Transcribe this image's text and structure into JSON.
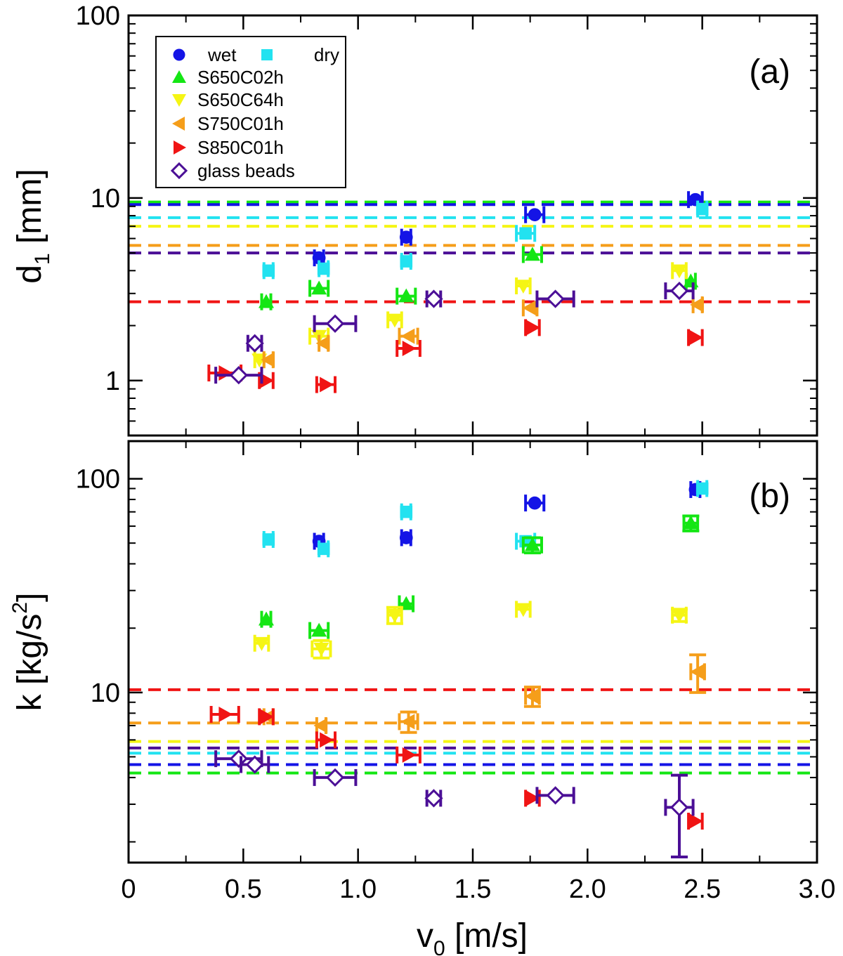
{
  "chart_data": [
    {
      "panel_label": "(a)",
      "type": "scatter",
      "x_scale": "linear",
      "y_scale": "log",
      "xlim": [
        0,
        3.0
      ],
      "ylim": [
        0.5,
        100
      ],
      "x_ticks": [
        0,
        0.5,
        1.0,
        1.5,
        2.0,
        2.5,
        3.0
      ],
      "x_tick_labels": [
        "",
        "",
        "",
        "",
        "",
        "",
        ""
      ],
      "y_ticks": [
        1,
        10,
        100
      ],
      "y_tick_labels": [
        "1",
        "10",
        "100"
      ],
      "ylabel": "d",
      "ylabel_sub": "1",
      "ylabel_unit": " [mm]",
      "legend_position": "top-left",
      "legend": [
        {
          "name": "wet",
          "marker": "circle",
          "color": "#1414e6"
        },
        {
          "name": "dry",
          "marker": "square",
          "color": "#22e2f0"
        },
        {
          "name": "S650C02h",
          "marker": "triangle-up",
          "color": "#14e614"
        },
        {
          "name": "S650C64h",
          "marker": "triangle-down",
          "color": "#f5f514"
        },
        {
          "name": "S750C01h",
          "marker": "triangle-left",
          "color": "#f59e1a"
        },
        {
          "name": "S850C01h",
          "marker": "triangle-right",
          "color": "#f01414"
        },
        {
          "name": "glass beads",
          "marker": "diamond-open",
          "color": "#4b0f96"
        }
      ],
      "hlines": [
        {
          "series": "S650C02h",
          "y": 9.5
        },
        {
          "series": "wet",
          "y": 9.2
        },
        {
          "series": "dry",
          "y": 7.8
        },
        {
          "series": "S650C64h",
          "y": 7.0
        },
        {
          "series": "S750C01h",
          "y": 5.5
        },
        {
          "series": "glass beads",
          "y": 5.0
        },
        {
          "series": "S850C01h",
          "y": 2.7
        }
      ],
      "series": [
        {
          "name": "wet",
          "points": [
            [
              0.83,
              4.7,
              0.02
            ],
            [
              1.21,
              6.1,
              0.02
            ],
            [
              1.77,
              8.1,
              0.04
            ],
            [
              2.47,
              9.8,
              0.03
            ]
          ]
        },
        {
          "name": "dry",
          "points": [
            [
              0.61,
              4.0,
              0.02
            ],
            [
              0.85,
              4.1,
              0.02
            ],
            [
              1.21,
              4.5,
              0.02
            ],
            [
              1.73,
              6.4,
              0.04
            ],
            [
              2.5,
              8.7,
              0.02
            ]
          ]
        },
        {
          "name": "S650C02h",
          "points": [
            [
              0.6,
              2.7,
              0.02
            ],
            [
              0.83,
              3.2,
              0.04
            ],
            [
              1.21,
              2.9,
              0.04
            ],
            [
              1.76,
              4.9,
              0.04
            ],
            [
              2.45,
              3.5,
              0.02
            ]
          ]
        },
        {
          "name": "S650C64h",
          "points": [
            [
              0.57,
              1.3,
              0.02
            ],
            [
              0.83,
              1.75,
              0.04
            ],
            [
              1.16,
              2.15,
              0.03
            ],
            [
              1.72,
              3.3,
              0.03
            ],
            [
              2.4,
              4.0,
              0.03
            ]
          ]
        },
        {
          "name": "S750C01h",
          "points": [
            [
              0.61,
              1.3,
              0.02
            ],
            [
              0.85,
              1.6,
              0.02
            ],
            [
              1.22,
              1.75,
              0.04
            ],
            [
              1.75,
              2.5,
              0.03
            ],
            [
              2.48,
              2.6,
              0.02
            ]
          ]
        },
        {
          "name": "S850C01h",
          "points": [
            [
              0.42,
              1.1,
              0.07
            ],
            [
              0.6,
              1.0,
              0.03
            ],
            [
              0.86,
              0.95,
              0.04
            ],
            [
              1.22,
              1.5,
              0.05
            ],
            [
              1.76,
              1.95,
              0.03
            ],
            [
              2.47,
              1.72,
              0.03
            ]
          ]
        },
        {
          "name": "glass beads",
          "points": [
            [
              0.48,
              1.07,
              0.1
            ],
            [
              0.55,
              1.6,
              0.03
            ],
            [
              0.9,
              2.05,
              0.09
            ],
            [
              1.33,
              2.8,
              0.03
            ],
            [
              1.86,
              2.8,
              0.08
            ],
            [
              2.4,
              3.1,
              0.06
            ]
          ]
        }
      ]
    },
    {
      "panel_label": "(b)",
      "type": "scatter",
      "x_scale": "linear",
      "y_scale": "log",
      "xlim": [
        0,
        3.0
      ],
      "ylim": [
        1.6,
        150
      ],
      "x_ticks": [
        0,
        0.5,
        1.0,
        1.5,
        2.0,
        2.5,
        3.0
      ],
      "x_tick_labels": [
        "0",
        "0.5",
        "1.0",
        "1.5",
        "2.0",
        "2.5",
        "3.0"
      ],
      "y_ticks": [
        10,
        100
      ],
      "y_tick_labels": [
        "10",
        "100"
      ],
      "xlabel": "v",
      "xlabel_sub": "0",
      "xlabel_unit": " [m/s]",
      "ylabel": "k [kg/s",
      "ylabel_sup": "2",
      "ylabel_end": "]",
      "hlines": [
        {
          "series": "S850C01h",
          "y": 10.3
        },
        {
          "series": "S750C01h",
          "y": 7.2
        },
        {
          "series": "S650C64h",
          "y": 5.9
        },
        {
          "series": "glass beads",
          "y": 5.5
        },
        {
          "series": "dry",
          "y": 5.2
        },
        {
          "series": "wet",
          "y": 4.6
        },
        {
          "series": "S650C02h",
          "y": 4.2
        }
      ],
      "series": [
        {
          "name": "wet",
          "points": [
            [
              0.83,
              51,
              0.02,
              0
            ],
            [
              1.21,
              53,
              0.02,
              0
            ],
            [
              1.77,
              77,
              0.04,
              0
            ],
            [
              2.47,
              89,
              0.02,
              0
            ]
          ]
        },
        {
          "name": "dry",
          "points": [
            [
              0.61,
              52,
              0.02,
              0
            ],
            [
              0.85,
              47,
              0.02,
              0
            ],
            [
              1.21,
              70,
              0.02,
              0
            ],
            [
              1.73,
              51,
              0.04,
              0
            ],
            [
              2.5,
              90,
              0.02,
              0
            ]
          ]
        },
        {
          "name": "S650C02h",
          "points": [
            [
              0.6,
              22,
              0.02,
              0
            ],
            [
              0.83,
              19.5,
              0.04,
              0
            ],
            [
              1.21,
              26,
              0.03,
              0
            ],
            [
              1.76,
              49,
              0.04,
              4
            ],
            [
              2.45,
              62,
              0.03,
              5
            ]
          ]
        },
        {
          "name": "S650C64h",
          "points": [
            [
              0.58,
              17,
              0.03,
              0
            ],
            [
              0.84,
              16,
              0.04,
              1.5
            ],
            [
              1.16,
              23,
              0.03,
              2
            ],
            [
              1.72,
              24.5,
              0.03,
              0
            ],
            [
              2.4,
              23,
              0.03,
              1.5
            ]
          ]
        },
        {
          "name": "S750C01h",
          "points": [
            [
              0.61,
              7.7,
              0.02,
              0
            ],
            [
              0.84,
              7.0,
              0.02,
              0
            ],
            [
              1.22,
              7.3,
              0.04,
              0.8
            ],
            [
              1.76,
              9.6,
              0.03,
              1.0
            ],
            [
              2.48,
              12.5,
              0.03,
              2.5
            ]
          ]
        },
        {
          "name": "S850C01h",
          "points": [
            [
              0.42,
              7.9,
              0.06,
              0
            ],
            [
              0.6,
              7.7,
              0.03,
              0
            ],
            [
              0.86,
              6.0,
              0.04,
              0
            ],
            [
              1.22,
              5.1,
              0.05,
              0
            ],
            [
              1.76,
              3.2,
              0.03,
              0
            ],
            [
              2.47,
              2.5,
              0.03,
              0
            ]
          ]
        },
        {
          "name": "glass beads",
          "points": [
            [
              0.48,
              4.9,
              0.1,
              0
            ],
            [
              0.55,
              4.6,
              0.06,
              0
            ],
            [
              0.9,
              4.0,
              0.09,
              0
            ],
            [
              1.33,
              3.2,
              0.03,
              0
            ],
            [
              1.86,
              3.3,
              0.08,
              0
            ],
            [
              2.4,
              2.9,
              0.06,
              1.2
            ]
          ]
        }
      ]
    }
  ]
}
